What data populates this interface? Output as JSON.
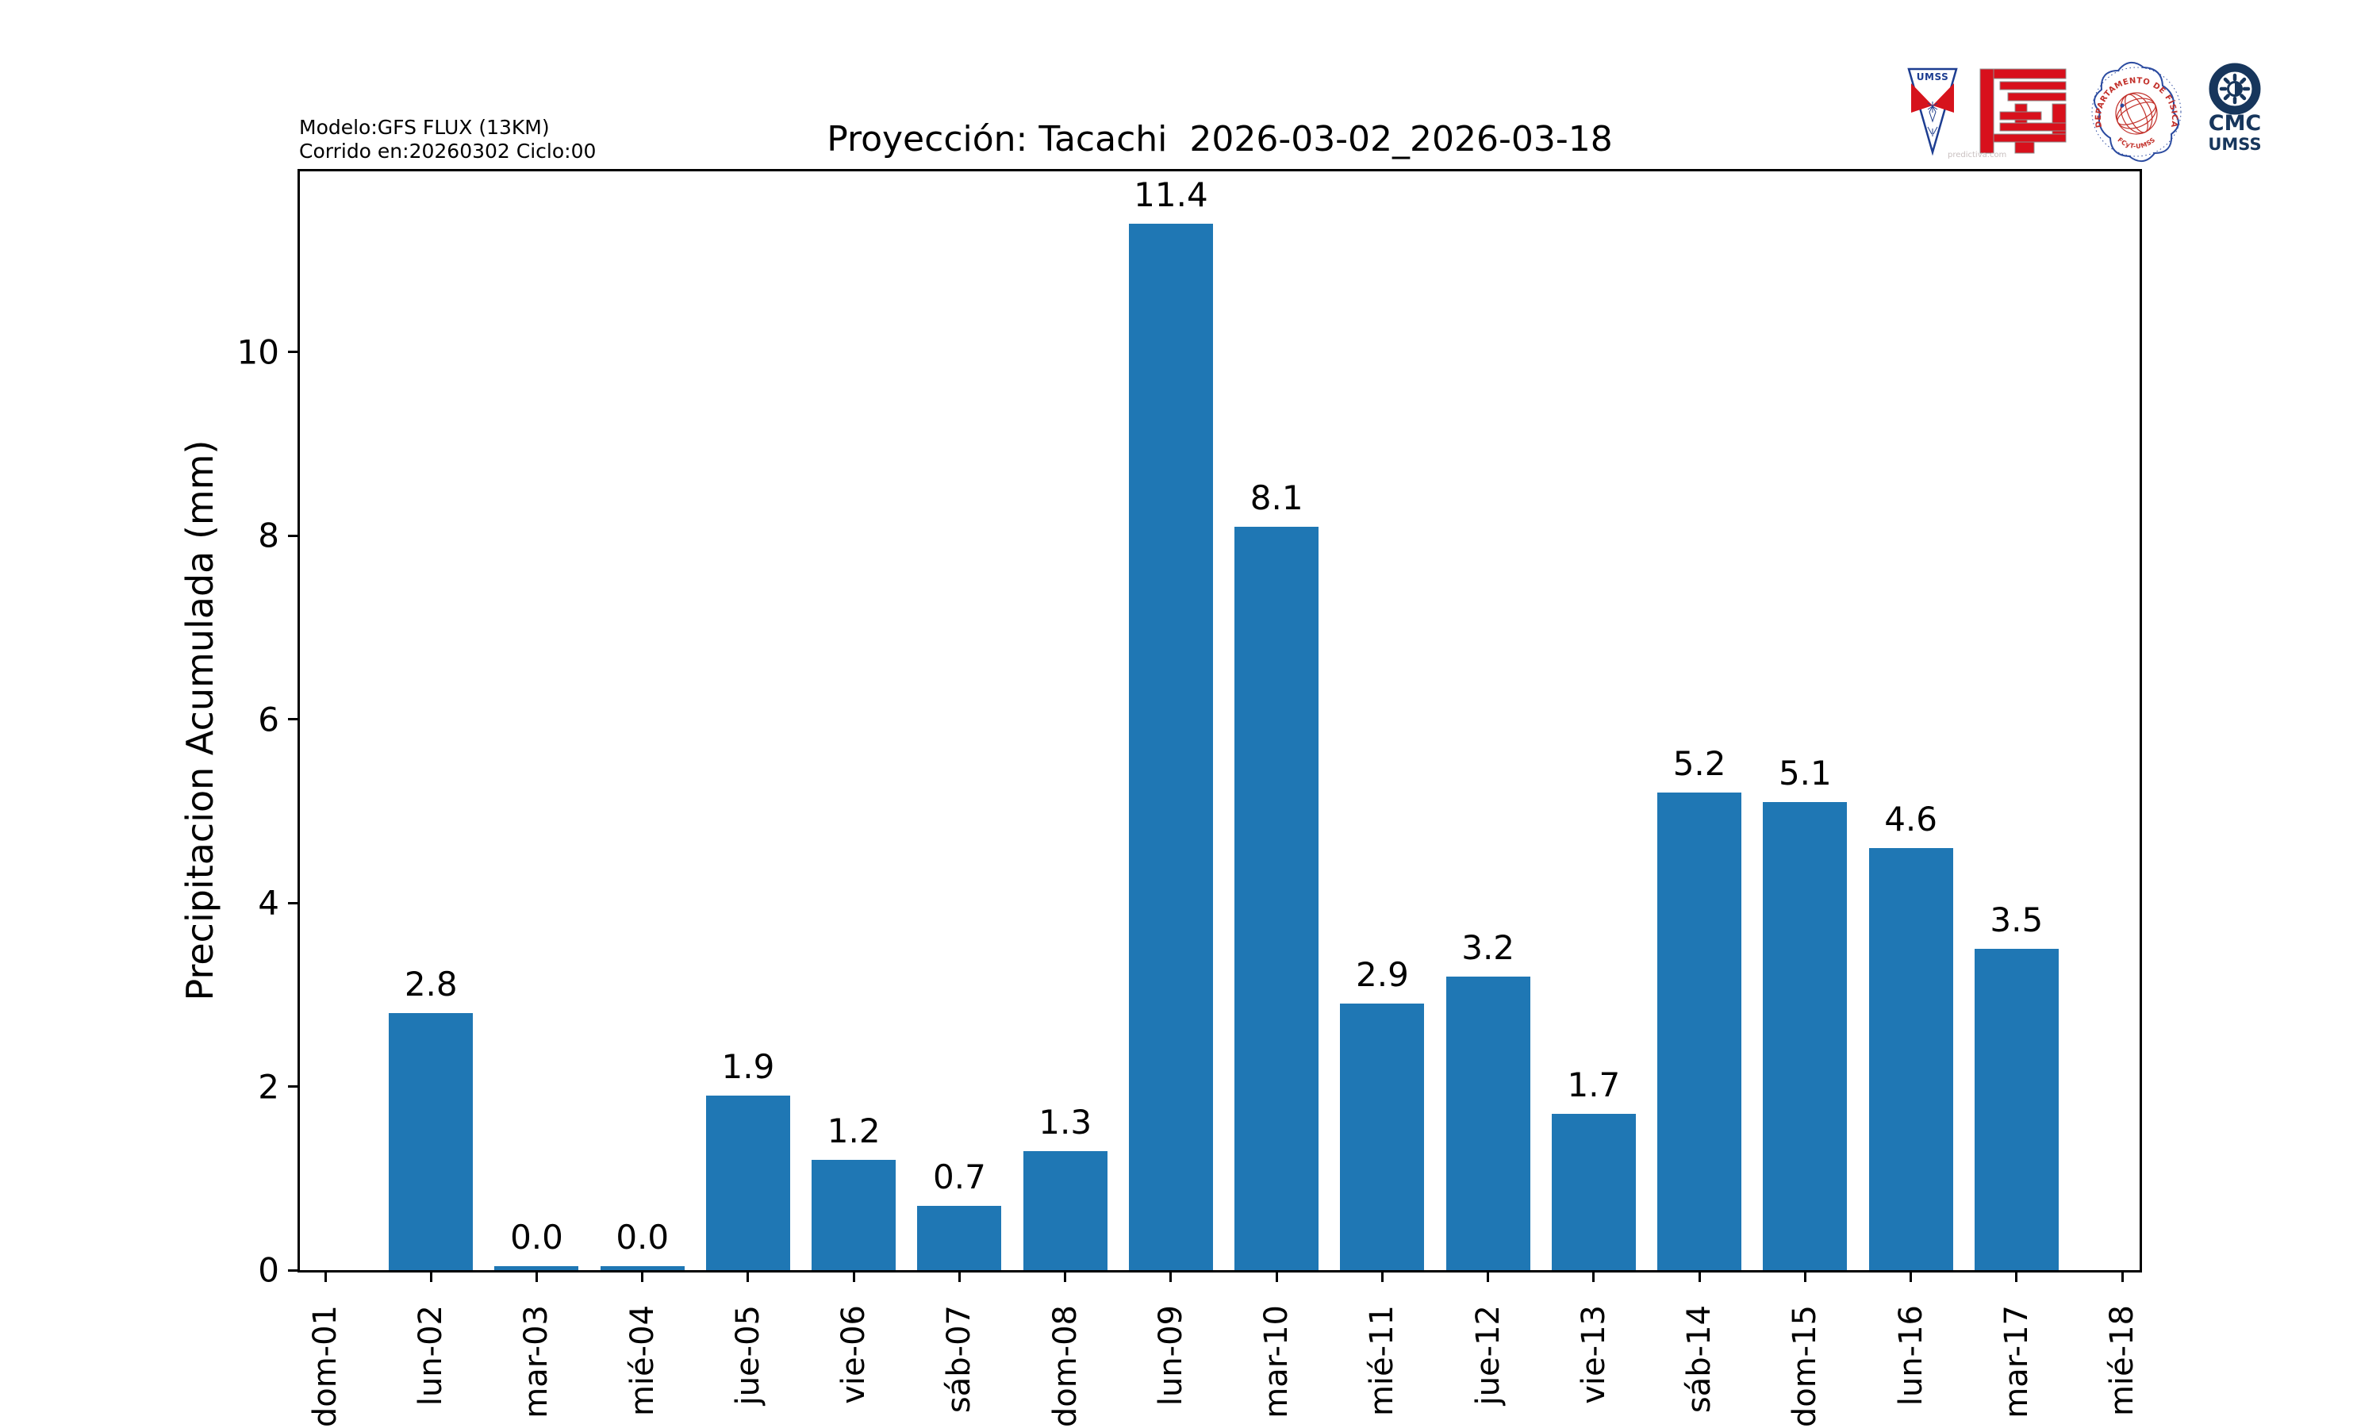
{
  "header": {
    "model_line1": "Modelo:GFS FLUX (13KM)",
    "model_line2": "Corrido en:20260302 Ciclo:00",
    "title": "Proyección: Tacachi  2026-03-02_2026-03-18"
  },
  "logos": {
    "umss_pennant_text": "UMSS",
    "watermark": "predictiva.com",
    "seal_text_top": "DEPARTAMENTO DE FÍSICA",
    "seal_text_bottom": "FCyT-UMSS",
    "cmc_line1": "CMC",
    "cmc_line2": "UMSS"
  },
  "chart_data": {
    "type": "bar",
    "title": "Proyección: Tacachi  2026-03-02_2026-03-18",
    "xlabel": "",
    "ylabel": "Precipitacion Acumulada (mm)",
    "categories": [
      "dom-01",
      "lun-02",
      "mar-03",
      "mié-04",
      "jue-05",
      "vie-06",
      "sáb-07",
      "dom-08",
      "lun-09",
      "mar-10",
      "mié-11",
      "jue-12",
      "vie-13",
      "sáb-14",
      "dom-15",
      "lun-16",
      "mar-17",
      "mié-18"
    ],
    "values": [
      null,
      2.8,
      0.04,
      0.04,
      1.9,
      1.2,
      0.7,
      1.3,
      11.4,
      8.1,
      2.9,
      3.2,
      1.7,
      5.2,
      5.1,
      4.6,
      3.5,
      null
    ],
    "bar_labels": [
      null,
      "2.8",
      "0.0",
      "0.0",
      "1.9",
      "1.2",
      "0.7",
      "1.3",
      "11.4",
      "8.1",
      "2.9",
      "3.2",
      "1.7",
      "5.2",
      "5.1",
      "4.6",
      "3.5",
      null
    ],
    "yticks": [
      0,
      2,
      4,
      6,
      8,
      10
    ],
    "ylim": [
      0,
      11.97
    ],
    "bar_color": "#1f77b4",
    "grid": false,
    "legend": null
  }
}
